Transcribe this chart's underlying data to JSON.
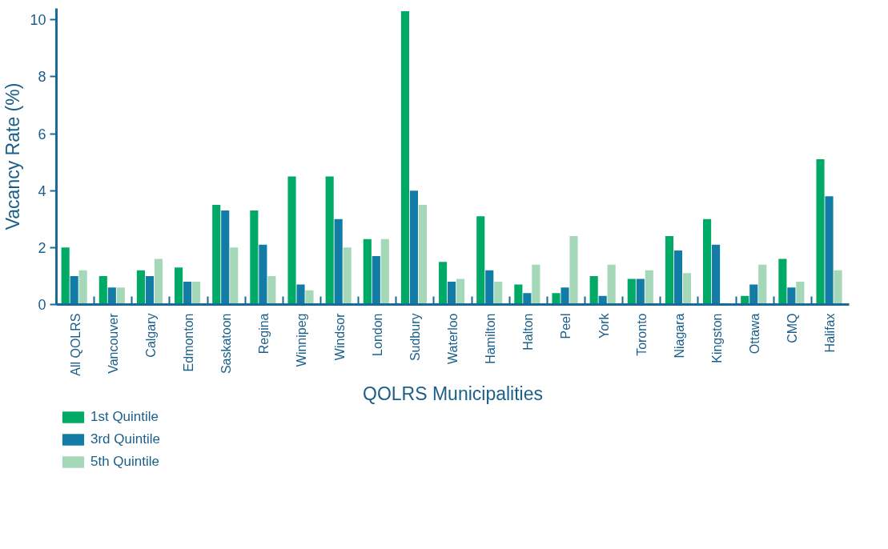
{
  "chart_data": {
    "type": "bar",
    "xlabel": "QOLRS Municipalities",
    "ylabel": "Vacancy Rate (%)",
    "categories": [
      "All QOLRS",
      "Vancouver",
      "Calgary",
      "Edmonton",
      "Saskatoon",
      "Regina",
      "Winnipeg",
      "Windsor",
      "London",
      "Sudbury",
      "Waterloo",
      "Hamilton",
      "Halton",
      "Peel",
      "York",
      "Toronto",
      "Niagara",
      "Kingston",
      "Ottawa",
      "CMQ",
      "Halifax"
    ],
    "series": [
      {
        "name": "1st Quintile",
        "color": "#00a966",
        "values": [
          2.0,
          1.0,
          1.2,
          1.3,
          3.5,
          3.3,
          4.5,
          4.5,
          2.3,
          10.3,
          1.5,
          3.1,
          0.7,
          0.4,
          1.0,
          0.9,
          2.4,
          3.0,
          0.3,
          1.6,
          5.1
        ]
      },
      {
        "name": "3rd Quintile",
        "color": "#127ba6",
        "values": [
          1.0,
          0.6,
          1.0,
          0.8,
          3.3,
          2.1,
          0.7,
          3.0,
          1.7,
          4.0,
          0.8,
          1.2,
          0.4,
          0.6,
          0.3,
          0.9,
          1.9,
          2.1,
          0.7,
          0.6,
          3.8
        ]
      },
      {
        "name": "5th Quintile",
        "color": "#a4d8b9",
        "values": [
          1.2,
          0.6,
          1.6,
          0.8,
          2.0,
          1.0,
          0.5,
          2.0,
          2.3,
          3.5,
          0.9,
          0.8,
          1.4,
          2.4,
          1.4,
          1.2,
          1.1,
          null,
          1.4,
          0.8,
          1.2
        ]
      }
    ],
    "ylim": [
      0,
      10.4
    ],
    "yticks": [
      0,
      2,
      4,
      6,
      8,
      10
    ],
    "grid": false,
    "legend": "bottom left"
  }
}
